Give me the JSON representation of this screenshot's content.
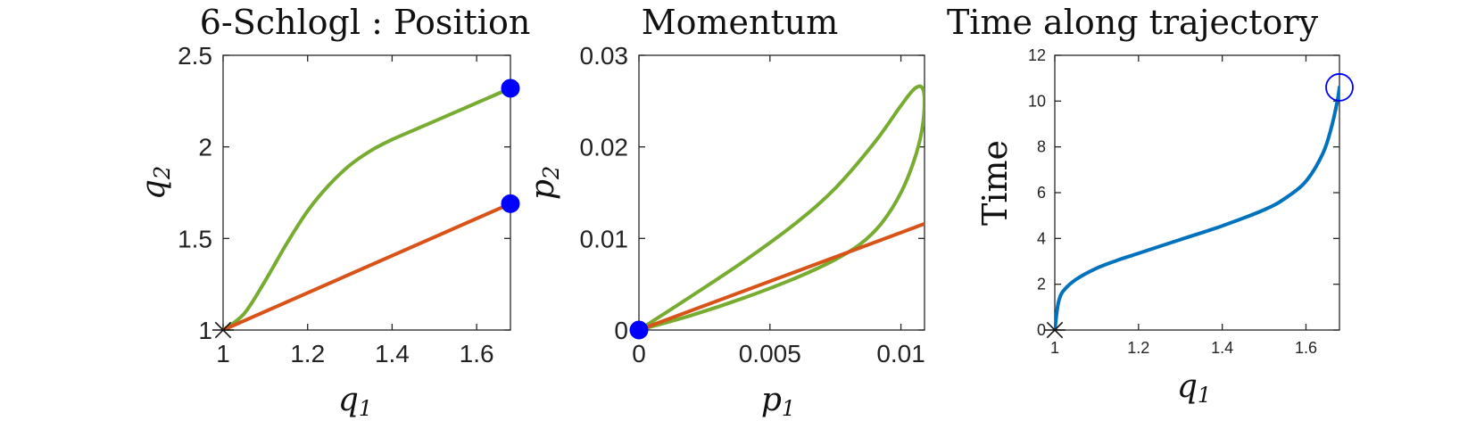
{
  "colors": {
    "green": "#77AC30",
    "orange": "#D95319",
    "blue_curve": "#0072BD",
    "marker_blue": "#0000FF",
    "axis": "#262626"
  },
  "chart_data": [
    {
      "id": "position",
      "type": "line",
      "title": "6-Schlogl : Position",
      "xlabel": "q",
      "xlabel_sub": "1",
      "ylabel": "q",
      "ylabel_sub": "2",
      "xlim": [
        1,
        1.68
      ],
      "ylim": [
        1,
        2.5
      ],
      "xticks": [
        1,
        1.2,
        1.4,
        1.6
      ],
      "xtick_labels": [
        "1",
        "1.2",
        "1.4",
        "1.6"
      ],
      "yticks": [
        1,
        1.5,
        2,
        2.5
      ],
      "ytick_labels": [
        "1",
        "1.5",
        "2",
        "2.5"
      ],
      "series": [
        {
          "color": "green",
          "x": [
            1.0,
            1.05,
            1.1,
            1.15,
            1.2,
            1.25,
            1.3,
            1.35,
            1.4,
            1.45,
            1.5,
            1.55,
            1.6,
            1.65,
            1.68
          ],
          "y": [
            1.0,
            1.09,
            1.27,
            1.47,
            1.65,
            1.79,
            1.9,
            1.98,
            2.04,
            2.09,
            2.14,
            2.19,
            2.24,
            2.29,
            2.32
          ]
        },
        {
          "color": "orange",
          "x": [
            1.0,
            1.68
          ],
          "y": [
            1.0,
            1.69
          ]
        }
      ],
      "markers": [
        {
          "shape": "filled-circle",
          "color": "marker_blue",
          "x": 1.68,
          "y": 2.32
        },
        {
          "shape": "filled-circle",
          "color": "marker_blue",
          "x": 1.68,
          "y": 1.69
        },
        {
          "shape": "asterisk",
          "color": "#111111",
          "x": 1.0,
          "y": 1.0
        }
      ]
    },
    {
      "id": "momentum",
      "type": "line",
      "title": "Momentum",
      "xlabel": "p",
      "xlabel_sub": "1",
      "ylabel": "p",
      "ylabel_sub": "2",
      "xlim": [
        0,
        0.0109
      ],
      "ylim": [
        0,
        0.03
      ],
      "xticks": [
        0,
        0.005,
        0.01
      ],
      "xtick_labels": [
        "0",
        "0.005",
        "0.01"
      ],
      "yticks": [
        0,
        0.01,
        0.02,
        0.03
      ],
      "ytick_labels": [
        "0",
        "0.01",
        "0.02",
        "0.03"
      ],
      "series": [
        {
          "color": "green",
          "x": [
            0,
            0.002,
            0.004,
            0.006,
            0.0075,
            0.009,
            0.01,
            0.0105,
            0.0108,
            0.0109,
            0.0108,
            0.0105,
            0.01,
            0.0093,
            0.0085,
            0.0075,
            0.006,
            0.004,
            0.002,
            0
          ],
          "y": [
            0,
            0.0037,
            0.0075,
            0.0117,
            0.0155,
            0.0205,
            0.0245,
            0.0263,
            0.0265,
            0.025,
            0.0218,
            0.0185,
            0.015,
            0.0118,
            0.0095,
            0.0077,
            0.0057,
            0.0035,
            0.0016,
            0
          ]
        },
        {
          "color": "orange",
          "x": [
            0,
            0.0109
          ],
          "y": [
            0,
            0.0116
          ]
        }
      ],
      "markers": [
        {
          "shape": "filled-circle",
          "color": "marker_blue",
          "x": 0,
          "y": 0
        }
      ]
    },
    {
      "id": "time",
      "type": "line",
      "title": "Time along trajectory",
      "xlabel": "q",
      "xlabel_sub": "1",
      "ylabel": "Time",
      "xlim": [
        1,
        1.68
      ],
      "ylim": [
        0,
        12
      ],
      "xticks": [
        1,
        1.2,
        1.4,
        1.6
      ],
      "xtick_labels": [
        "1",
        "1.2",
        "1.4",
        "1.6"
      ],
      "yticks": [
        0,
        2,
        4,
        6,
        8,
        10,
        12
      ],
      "ytick_labels": [
        "0",
        "2",
        "4",
        "6",
        "8",
        "10",
        "12"
      ],
      "series": [
        {
          "color": "blue_curve",
          "x": [
            1.0,
            1.005,
            1.01,
            1.02,
            1.05,
            1.1,
            1.15,
            1.2,
            1.3,
            1.4,
            1.5,
            1.55,
            1.6,
            1.64,
            1.66,
            1.675,
            1.68
          ],
          "y": [
            0,
            0.8,
            1.3,
            1.7,
            2.2,
            2.7,
            3.05,
            3.35,
            3.95,
            4.55,
            5.25,
            5.75,
            6.5,
            7.7,
            8.8,
            10.0,
            10.6
          ]
        }
      ],
      "markers": [
        {
          "shape": "open-circle",
          "color": "marker_blue",
          "x": 1.68,
          "y": 10.6
        },
        {
          "shape": "asterisk",
          "color": "#111111",
          "x": 1.0,
          "y": 0
        }
      ]
    }
  ]
}
